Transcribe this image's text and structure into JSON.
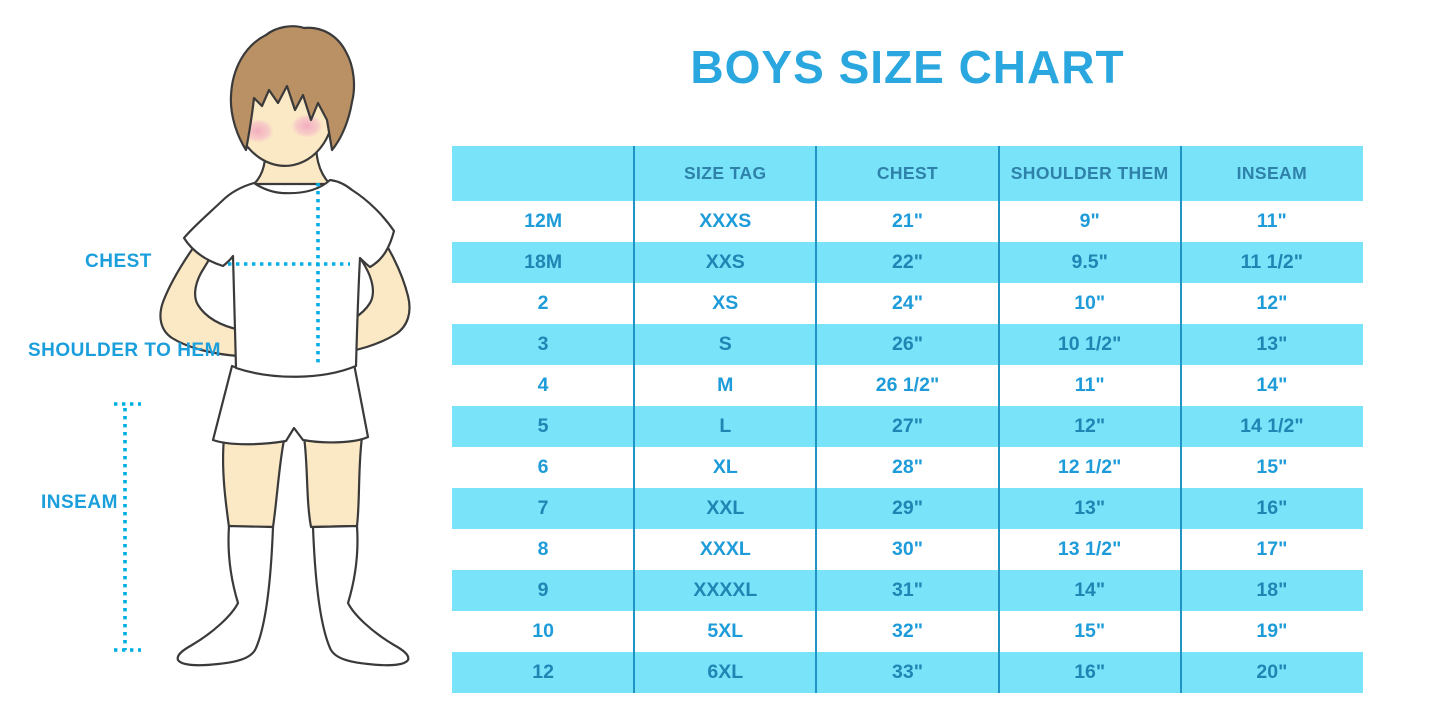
{
  "title": "BOYS SIZE CHART",
  "diagram": {
    "chest_label": "CHEST",
    "shoulder_to_hem_label": "SHOULDER TO HEM",
    "inseam_label": "INSEAM"
  },
  "table": {
    "columns": [
      "",
      "SIZE TAG",
      "CHEST",
      "SHOULDER THEM",
      "INSEAM"
    ],
    "rows": [
      [
        "12M",
        "XXXS",
        "21\"",
        "9\"",
        "11\""
      ],
      [
        "18M",
        "XXS",
        "22\"",
        "9.5\"",
        "11 1/2\""
      ],
      [
        "2",
        "XS",
        "24\"",
        "10\"",
        "12\""
      ],
      [
        "3",
        "S",
        "26\"",
        "10 1/2\"",
        "13\""
      ],
      [
        "4",
        "M",
        "26 1/2\"",
        "11\"",
        "14\""
      ],
      [
        "5",
        "L",
        "27\"",
        "12\"",
        "14 1/2\""
      ],
      [
        "6",
        "XL",
        "28\"",
        "12 1/2\"",
        "15\""
      ],
      [
        "7",
        "XXL",
        "29\"",
        "13\"",
        "16\""
      ],
      [
        "8",
        "XXXL",
        "30\"",
        "13 1/2\"",
        "17\""
      ],
      [
        "9",
        "XXXXL",
        "31\"",
        "14\"",
        "18\""
      ],
      [
        "10",
        "5XL",
        "32\"",
        "15\"",
        "19\""
      ],
      [
        "12",
        "6XL",
        "33\"",
        "16\"",
        "20\""
      ]
    ]
  },
  "colors": {
    "title_blue": "#2BA7DF",
    "label_blue": "#1B9FDC",
    "dotted_line_blue": "#00AEE4",
    "row_cyan": "#79E3FA",
    "column_divider": "#2095C5",
    "header_text": "#2E81A8",
    "cell_text": "#1E9CD9",
    "cell_text_on_cyan": "#1F86B4"
  },
  "chart_data": {
    "type": "table",
    "title": "BOYS SIZE CHART",
    "columns": [
      "",
      "SIZE TAG",
      "CHEST",
      "SHOULDER THEM",
      "INSEAM"
    ],
    "rows": [
      [
        "12M",
        "XXXS",
        "21\"",
        "9\"",
        "11\""
      ],
      [
        "18M",
        "XXS",
        "22\"",
        "9.5\"",
        "11 1/2\""
      ],
      [
        "2",
        "XS",
        "24\"",
        "10\"",
        "12\""
      ],
      [
        "3",
        "S",
        "26\"",
        "10 1/2\"",
        "13\""
      ],
      [
        "4",
        "M",
        "26 1/2\"",
        "11\"",
        "14\""
      ],
      [
        "5",
        "L",
        "27\"",
        "12\"",
        "14 1/2\""
      ],
      [
        "6",
        "XL",
        "28\"",
        "12 1/2\"",
        "15\""
      ],
      [
        "7",
        "XXL",
        "29\"",
        "13\"",
        "16\""
      ],
      [
        "8",
        "XXXL",
        "30\"",
        "13 1/2\"",
        "17\""
      ],
      [
        "9",
        "XXXXL",
        "31\"",
        "14\"",
        "18\""
      ],
      [
        "10",
        "5XL",
        "32\"",
        "15\"",
        "19\""
      ],
      [
        "12",
        "6XL",
        "33\"",
        "16\"",
        "20\""
      ]
    ],
    "notes": "Alternating white/cyan rows; cyan header row; measured in inches"
  }
}
